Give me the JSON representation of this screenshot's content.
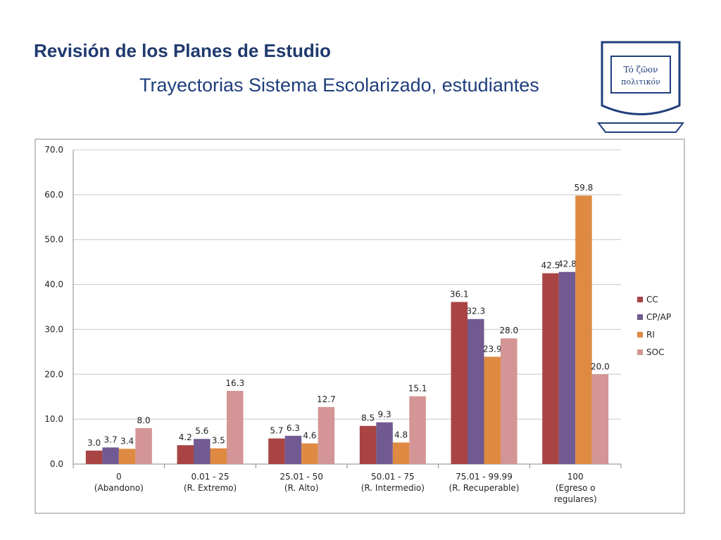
{
  "header": {
    "title": "Revisión de los Planes de Estudio",
    "subtitle": "Trayectorias  Sistema Escolarizado, estudiantes"
  },
  "logo": {
    "motto": [
      "Tó ζῶον",
      "πολιτικόν"
    ]
  },
  "chart_data": {
    "type": "bar",
    "categories": [
      [
        "0",
        "(Abandono)"
      ],
      [
        "0.01 - 25",
        "(R. Extremo)"
      ],
      [
        "25.01 - 50",
        "(R. Alto)"
      ],
      [
        "50.01 - 75",
        "(R. Intermedio)"
      ],
      [
        "75.01 - 99.99",
        "(R. Recuperable)"
      ],
      [
        "100",
        "(Egreso o",
        "regulares)"
      ]
    ],
    "series": [
      {
        "name": "CC",
        "color": "#a94444",
        "values": [
          3.0,
          4.2,
          5.7,
          8.5,
          36.1,
          42.5
        ],
        "value_labels": [
          "3.0",
          "4.2",
          "5.7",
          "8.5",
          "36.1",
          "42.5"
        ]
      },
      {
        "name": "CP/AP",
        "color": "#715a91",
        "values": [
          3.7,
          5.6,
          6.3,
          9.3,
          32.3,
          42.8
        ],
        "value_labels": [
          "3.7",
          "5.6",
          "6.3",
          "9.3",
          "32.3",
          "42.8"
        ]
      },
      {
        "name": "RI",
        "color": "#de8a42",
        "values": [
          3.4,
          3.5,
          4.6,
          4.8,
          23.9,
          59.8
        ],
        "value_labels": [
          "3.4",
          "3.5",
          "4.6",
          "4.8",
          "23.9",
          "59.8"
        ]
      },
      {
        "name": "SOC",
        "color": "#d39595",
        "values": [
          8.0,
          16.3,
          12.7,
          15.1,
          28.0,
          20.0
        ],
        "value_labels": [
          "8.0",
          "16.3",
          "12.7",
          "15.1",
          "28.0",
          "20.0"
        ]
      }
    ],
    "ylim": [
      0,
      70
    ],
    "yticks": [
      {
        "value": 0,
        "label": "0.0"
      },
      {
        "value": 10,
        "label": "10.0"
      },
      {
        "value": 20,
        "label": "20.0"
      },
      {
        "value": 30,
        "label": "30.0"
      },
      {
        "value": 40,
        "label": "40.0"
      },
      {
        "value": 50,
        "label": "50.0"
      },
      {
        "value": 60,
        "label": "60.0"
      },
      {
        "value": 70,
        "label": "70.0"
      }
    ],
    "grid": true,
    "legend": "right"
  }
}
